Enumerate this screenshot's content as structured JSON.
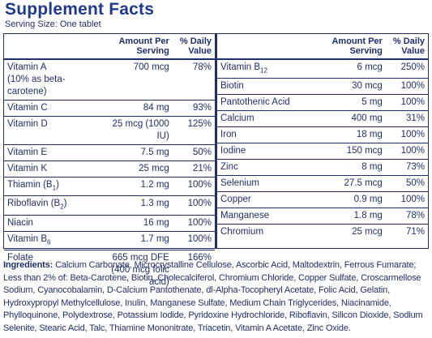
{
  "title": "Supplement Facts",
  "serving": "Serving Size: One tablet",
  "left_table": {
    "headers": {
      "amount": "Amount Per Serving",
      "dv": "% Daily Value"
    },
    "rows": [
      {
        "name": "Vitamin A",
        "note": "(10% as beta-carotene)",
        "amount": "700 mcg",
        "dv": "78%"
      },
      {
        "name": "Vitamin C",
        "amount": "84 mg",
        "dv": "93%"
      },
      {
        "name": "Vitamin D",
        "amount": "25 mcg (1000 IU)",
        "dv": "125%"
      },
      {
        "name": "Vitamin E",
        "amount": "7.5 mg",
        "dv": "50%"
      },
      {
        "name": "Vitamin K",
        "amount": "25 mcg",
        "dv": "21%"
      },
      {
        "name": "Thiamin (B",
        "sub": "1",
        "after": ")",
        "amount": "1.2 mg",
        "dv": "100%"
      },
      {
        "name": "Riboflavin (B",
        "sub": "2",
        "after": ")",
        "amount": "1.3 mg",
        "dv": "100%"
      },
      {
        "name": "Niacin",
        "amount": "16 mg",
        "dv": "100%"
      },
      {
        "name": "Vitamin B",
        "sub": "6",
        "amount": "1.7 mg",
        "dv": "100%"
      },
      {
        "name": "Folate",
        "amount": "665 mcg DFE",
        "amount_note": "(400 mcg folic acid)",
        "dv": "166%"
      }
    ]
  },
  "right_table": {
    "headers": {
      "amount": "Amount Per Serving",
      "dv": "% Daily Value"
    },
    "rows": [
      {
        "name": "Vitamin B",
        "sub": "12",
        "amount": "6 mcg",
        "dv": "250%"
      },
      {
        "name": "Biotin",
        "amount": "30 mcg",
        "dv": "100%"
      },
      {
        "name": "Pantothenic Acid",
        "amount": "5 mg",
        "dv": "100%"
      },
      {
        "name": "Calcium",
        "amount": "400 mg",
        "dv": "31%"
      },
      {
        "name": "Iron",
        "amount": "18 mg",
        "dv": "100%"
      },
      {
        "name": "Iodine",
        "amount": "150 mcg",
        "dv": "100%"
      },
      {
        "name": "Zinc",
        "amount": "8 mg",
        "dv": "73%"
      },
      {
        "name": "Selenium",
        "amount": "27.5 mcg",
        "dv": "50%"
      },
      {
        "name": "Copper",
        "amount": "0.9 mg",
        "dv": "100%"
      },
      {
        "name": "Manganese",
        "amount": "1.8 mg",
        "dv": "78%"
      },
      {
        "name": "Chromium",
        "amount": "25 mcg",
        "dv": "71%"
      }
    ]
  },
  "ingredients": {
    "label": "Ingredients:",
    "text": "Calcium Carbonate, Microcrystalline Cellulose, Ascorbic Acid, Maltodextrin, Ferrous Fumarate; Less than 2% of: Beta-Carotene, Biotin, Cholecalciferol, Chromium Chloride, Copper Sulfate, Croscarmellose Sodium, Cyanocobalamin, D-Calcium Pantothenate, dl-Alpha-Tocopheryl Acetate, Folic Acid, Gelatin, Hydroxypropyl Methylcellulose, Inulin, Manganese Sulfate, Medium Chain Triglycerides, Niacinamide, Phylloquinone, Polydextrose, Potassium Iodide, Pyridoxine Hydrochloride, Riboflavin, Silicon Dioxide, Sodium Selenite, Stearic Acid, Talc, Thiamine Mononitrate, Triacetin, Vitamin A Acetate, Zinc Oxide."
  }
}
